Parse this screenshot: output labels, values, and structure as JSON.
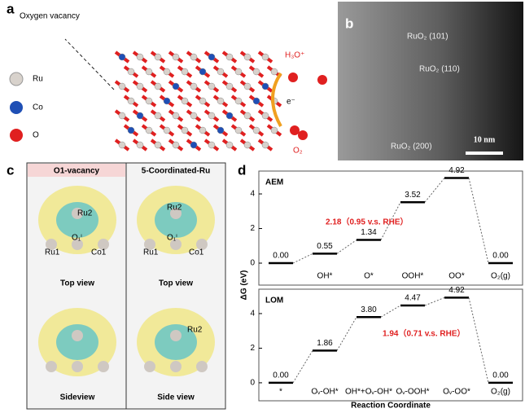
{
  "panel_a": {
    "label": "a",
    "note": "Oxygen vacancy",
    "legend": [
      "Ru",
      "Co",
      "O"
    ],
    "species": {
      "h3o": "H₃O⁺",
      "electron": "e⁻",
      "o2": "O₂"
    }
  },
  "panel_b": {
    "label": "b",
    "planes": [
      "RuO₂ (101)",
      "RuO₂ (110)",
      "RuO₂ (200)"
    ],
    "scale": "10 nm"
  },
  "panel_c": {
    "label": "c",
    "titles": [
      "O1-vacancy",
      "5-Coordinated-Ru"
    ],
    "left": {
      "ru2": "Ru2",
      "o": "O₁ⁱ",
      "ru1": "Ru1",
      "co1": "Co1",
      "top": "Top view",
      "side": "Sideview"
    },
    "right": {
      "ru2": "Ru2",
      "o": "O₁ⁱ",
      "ru1": "Ru1",
      "co1": "Co1",
      "top": "Top view",
      "side": "Side view",
      "ru2b": "Ru2"
    }
  },
  "panel_d": {
    "label": "d",
    "ylabel": "ΔG (eV)",
    "xlabel": "Reaction Coordinate"
  },
  "chart_data": [
    {
      "type": "step",
      "title": "AEM",
      "categories": [
        null,
        "OH*",
        "O*",
        "OOH*",
        "OO*",
        "O₂(g)"
      ],
      "values": [
        0.0,
        0.55,
        1.34,
        3.52,
        4.92,
        0.0
      ],
      "value_labels": [
        "0.00",
        "0.55",
        "1.34",
        "3.52",
        "4.92",
        "0.00"
      ],
      "annotation": "2.18（0.95 v.s. RHE）",
      "ylim": [
        -1.27,
        5.32
      ],
      "yticks": [
        0,
        2,
        4
      ],
      "color": "#000000"
    },
    {
      "type": "step",
      "title": "LOM",
      "categories": [
        "*",
        "Oᵥ-OH*",
        "OH*+Oᵥ-OH*",
        "Oᵥ-OOH*",
        "Oᵥ-OO*",
        "O₂(g)"
      ],
      "values": [
        0.0,
        1.86,
        3.8,
        4.47,
        4.92,
        0.0
      ],
      "value_labels": [
        "0.00",
        "1.86",
        "3.80",
        "4.47",
        "4.92",
        "0.00"
      ],
      "annotation": "1.94（0.71 v.s. RHE）",
      "ylim": [
        -1.04,
        5.41
      ],
      "yticks": [
        0,
        2,
        4
      ],
      "color": "#000000"
    }
  ]
}
